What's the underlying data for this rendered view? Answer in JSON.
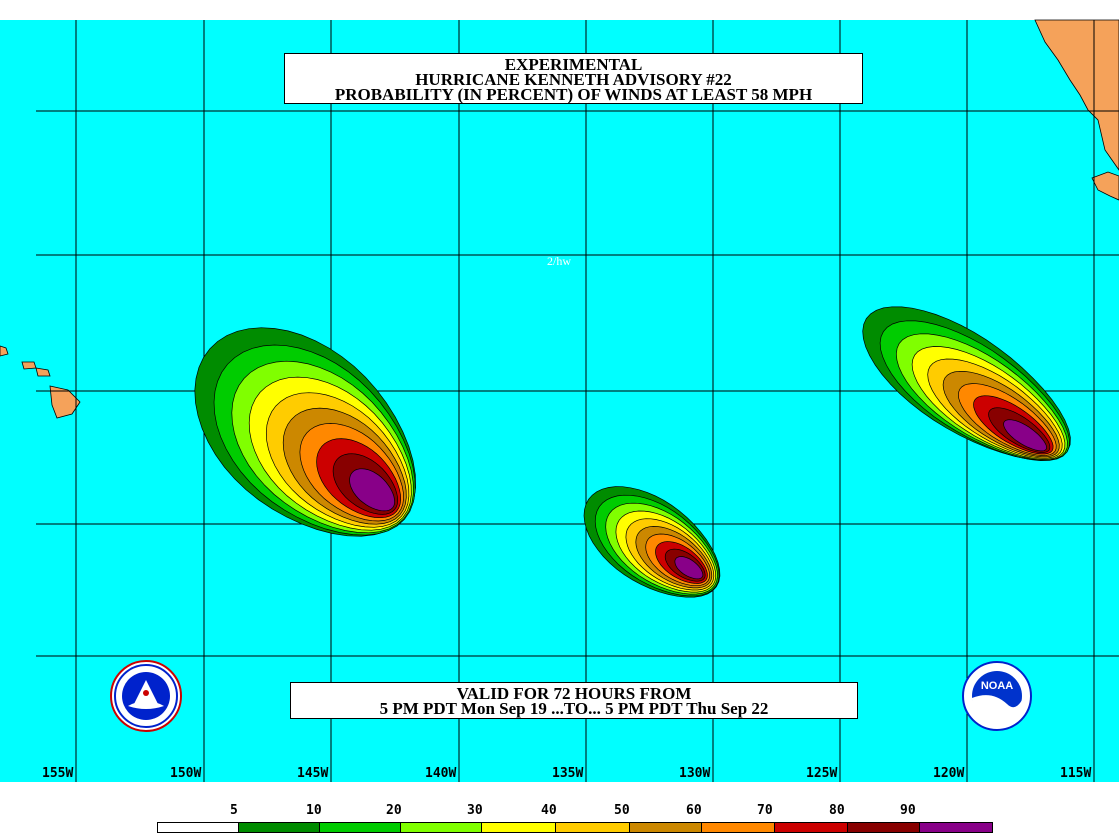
{
  "title": {
    "line1": "EXPERIMENTAL",
    "line2": "HURRICANE KENNETH ADVISORY #22",
    "line3": "PROBABILITY (IN PERCENT) OF WINDS AT LEAST 58 MPH"
  },
  "validity": {
    "line1": "VALID FOR 72 HOURS FROM",
    "line2": "5 PM PDT Mon Sep 19 ...TO... 5 PM PDT Thu Sep 22"
  },
  "credit": "2/hw",
  "longitude_labels": [
    "155W",
    "150W",
    "145W",
    "140W",
    "135W",
    "130W",
    "125W",
    "120W",
    "115W"
  ],
  "legend": {
    "values": [
      "5",
      "10",
      "20",
      "30",
      "40",
      "50",
      "60",
      "70",
      "80",
      "90"
    ],
    "colors": [
      "#ffffff",
      "#008c00",
      "#00cc00",
      "#80ff00",
      "#ffff00",
      "#ffcc00",
      "#cc8800",
      "#ff8800",
      "#cc0000",
      "#880000",
      "#880088"
    ]
  },
  "colors": {
    "ocean": "#00ffff",
    "land": "#f5a25a",
    "grid": "#000000"
  },
  "logos": {
    "left": "nws-logo",
    "right": "noaa-logo"
  }
}
